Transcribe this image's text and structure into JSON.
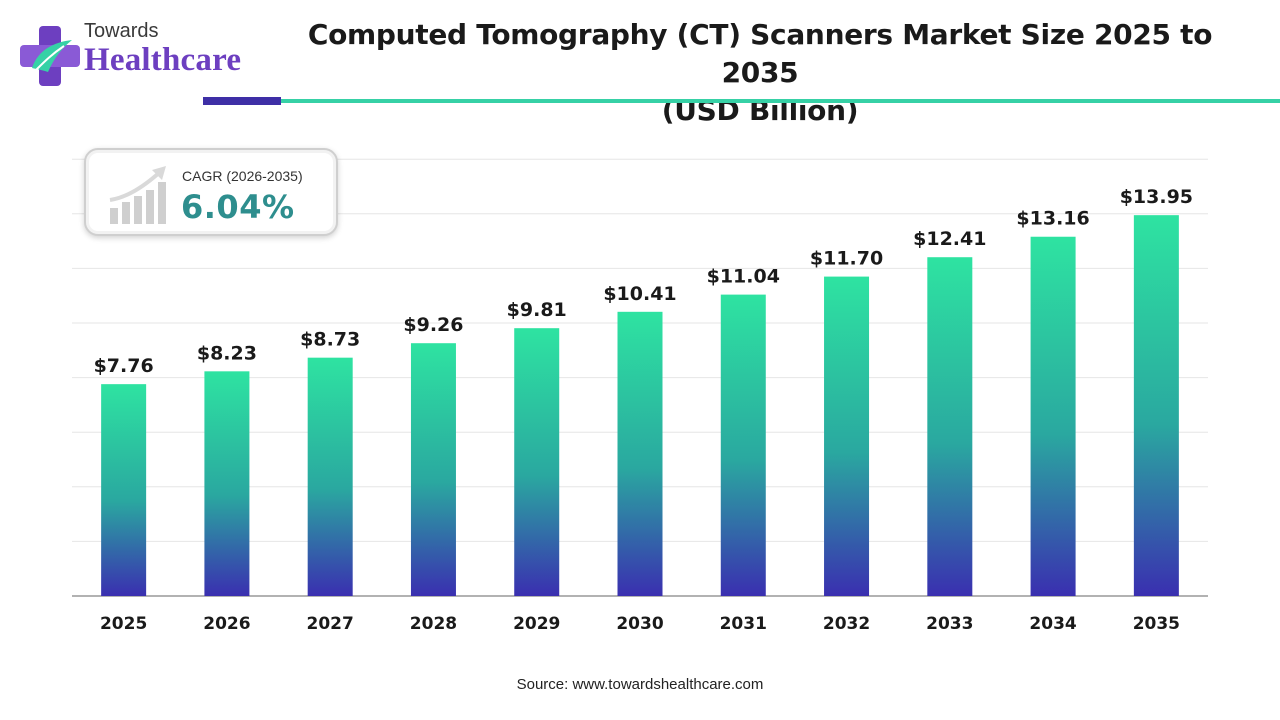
{
  "brand": {
    "small_text": "Towards",
    "big_text": "Healthcare",
    "logo_icon": "health-cross-icon",
    "primary_color": "#6d3fc0",
    "accent_color": "#36d1a6"
  },
  "header": {
    "title_line1": "Computed Tomography (CT) Scanners Market Size 2025 to 2035",
    "title_line2": "(USD Billion)"
  },
  "cagr": {
    "label": "CAGR (2026-2035)",
    "value": "6.04%",
    "icon": "growth-chart-icon"
  },
  "chart_data": {
    "type": "bar",
    "title": "Computed Tomography (CT) Scanners Market Size 2025 to 2035 (USD Billion)",
    "xlabel": "",
    "ylabel": "",
    "categories": [
      "2025",
      "2026",
      "2027",
      "2028",
      "2029",
      "2030",
      "2031",
      "2032",
      "2033",
      "2034",
      "2035"
    ],
    "values": [
      7.76,
      8.23,
      8.73,
      9.26,
      9.81,
      10.41,
      11.04,
      11.7,
      12.41,
      13.16,
      13.95
    ],
    "value_labels": [
      "$7.76",
      "$8.23",
      "$8.73",
      "$9.26",
      "$9.81",
      "$10.41",
      "$11.04",
      "$11.70",
      "$12.41",
      "$13.16",
      "$13.95"
    ],
    "ylim": [
      0,
      16
    ],
    "grid": true,
    "legend": "none",
    "colors": {
      "bar_top": "#2ee3a1",
      "bar_mid": "#2aa8a0",
      "bar_bottom": "#3a2fb0",
      "grid": "#e6e6e6",
      "axis": "#999999"
    }
  },
  "footer": {
    "source": "Source: www.towardshealthcare.com"
  }
}
